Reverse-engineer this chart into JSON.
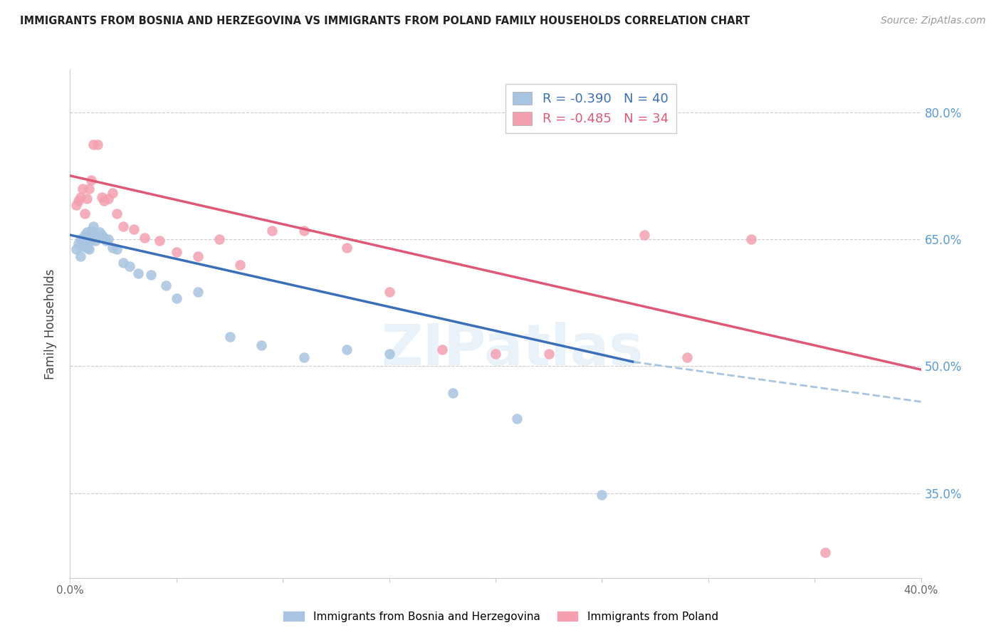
{
  "title": "IMMIGRANTS FROM BOSNIA AND HERZEGOVINA VS IMMIGRANTS FROM POLAND FAMILY HOUSEHOLDS CORRELATION CHART",
  "source": "Source: ZipAtlas.com",
  "ylabel": "Family Households",
  "xlim": [
    0.0,
    0.4
  ],
  "ylim": [
    0.25,
    0.85
  ],
  "yticks": [
    0.35,
    0.5,
    0.65,
    0.8
  ],
  "ytick_labels": [
    "35.0%",
    "50.0%",
    "65.0%",
    "80.0%"
  ],
  "legend_r1": "R = -0.390",
  "legend_n1": "N = 40",
  "legend_r2": "R = -0.485",
  "legend_n2": "N = 34",
  "label1": "Immigrants from Bosnia and Herzegovina",
  "label2": "Immigrants from Poland",
  "color1": "#a8c4e0",
  "color2": "#f4a0b0",
  "line_color1": "#3b6fba",
  "line_color2": "#e05878",
  "watermark": "ZIPatlas",
  "blue_line_x0": 0.0,
  "blue_line_y0": 0.655,
  "blue_line_x1": 0.265,
  "blue_line_y1": 0.505,
  "blue_line_x1_dashed": 0.4,
  "blue_line_y1_dashed": 0.458,
  "pink_line_x0": 0.0,
  "pink_line_y0": 0.725,
  "pink_line_x1": 0.4,
  "pink_line_y1": 0.496,
  "blue_pts_x": [
    0.003,
    0.004,
    0.005,
    0.005,
    0.006,
    0.006,
    0.007,
    0.007,
    0.008,
    0.008,
    0.009,
    0.009,
    0.01,
    0.01,
    0.011,
    0.012,
    0.012,
    0.013,
    0.014,
    0.015,
    0.016,
    0.017,
    0.018,
    0.02,
    0.022,
    0.025,
    0.028,
    0.032,
    0.038,
    0.045,
    0.05,
    0.06,
    0.075,
    0.09,
    0.11,
    0.13,
    0.15,
    0.18,
    0.21,
    0.25
  ],
  "blue_pts_y": [
    0.638,
    0.645,
    0.63,
    0.65,
    0.648,
    0.642,
    0.655,
    0.648,
    0.658,
    0.64,
    0.65,
    0.638,
    0.66,
    0.648,
    0.665,
    0.655,
    0.648,
    0.652,
    0.658,
    0.655,
    0.652,
    0.648,
    0.65,
    0.64,
    0.638,
    0.622,
    0.618,
    0.61,
    0.608,
    0.595,
    0.58,
    0.588,
    0.535,
    0.525,
    0.51,
    0.52,
    0.515,
    0.468,
    0.438,
    0.348
  ],
  "pink_pts_x": [
    0.003,
    0.004,
    0.005,
    0.006,
    0.007,
    0.008,
    0.009,
    0.01,
    0.011,
    0.013,
    0.015,
    0.016,
    0.018,
    0.02,
    0.022,
    0.025,
    0.03,
    0.035,
    0.042,
    0.05,
    0.06,
    0.07,
    0.08,
    0.095,
    0.11,
    0.13,
    0.15,
    0.175,
    0.2,
    0.225,
    0.27,
    0.29,
    0.32,
    0.355
  ],
  "pink_pts_y": [
    0.69,
    0.695,
    0.7,
    0.71,
    0.68,
    0.698,
    0.71,
    0.72,
    0.762,
    0.762,
    0.7,
    0.695,
    0.698,
    0.705,
    0.68,
    0.665,
    0.662,
    0.652,
    0.648,
    0.635,
    0.63,
    0.65,
    0.62,
    0.66,
    0.66,
    0.64,
    0.588,
    0.52,
    0.515,
    0.515,
    0.655,
    0.51,
    0.65,
    0.28
  ]
}
